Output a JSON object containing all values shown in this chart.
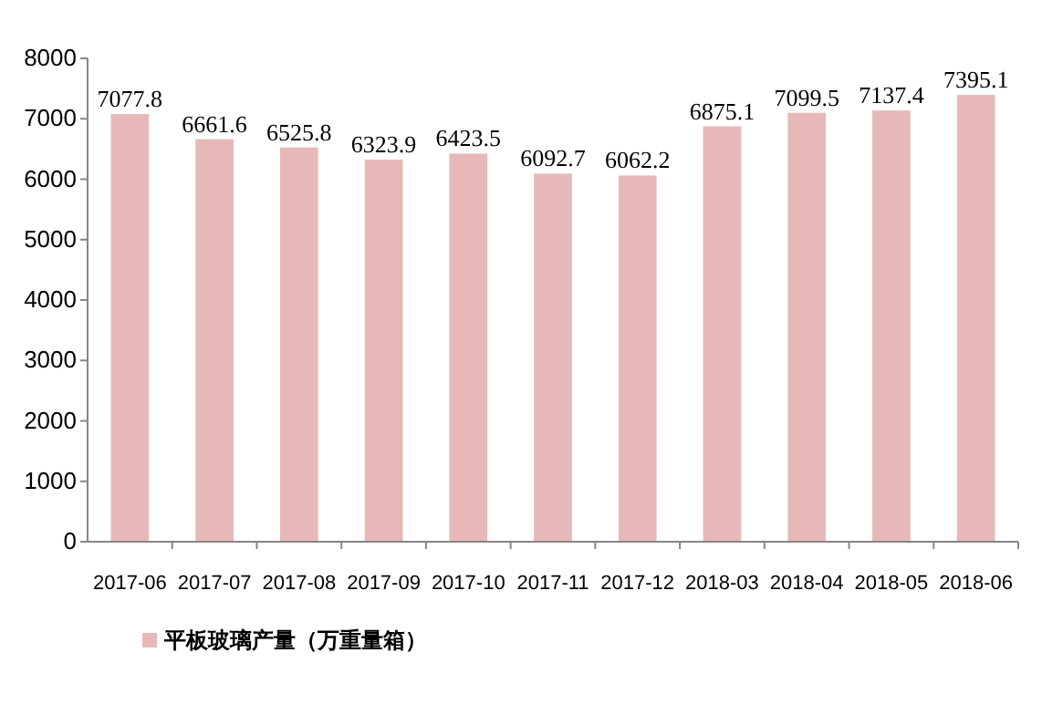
{
  "chart_data": {
    "type": "bar",
    "categories": [
      "2017-06",
      "2017-07",
      "2017-08",
      "2017-09",
      "2017-10",
      "2017-11",
      "2017-12",
      "2018-03",
      "2018-04",
      "2018-05",
      "2018-06"
    ],
    "series": [
      {
        "name": "平板玻璃产量（万重量箱）",
        "color": "#e6b9b8",
        "values": [
          7077.8,
          6661.6,
          6525.8,
          6323.9,
          6423.5,
          6092.7,
          6062.2,
          6875.1,
          7099.5,
          7137.4,
          7395.1
        ]
      }
    ],
    "ylim": [
      0,
      8000
    ],
    "yticks": [
      0,
      1000,
      2000,
      3000,
      4000,
      5000,
      6000,
      7000,
      8000
    ],
    "data_labels": true,
    "legend": "bottom left"
  }
}
